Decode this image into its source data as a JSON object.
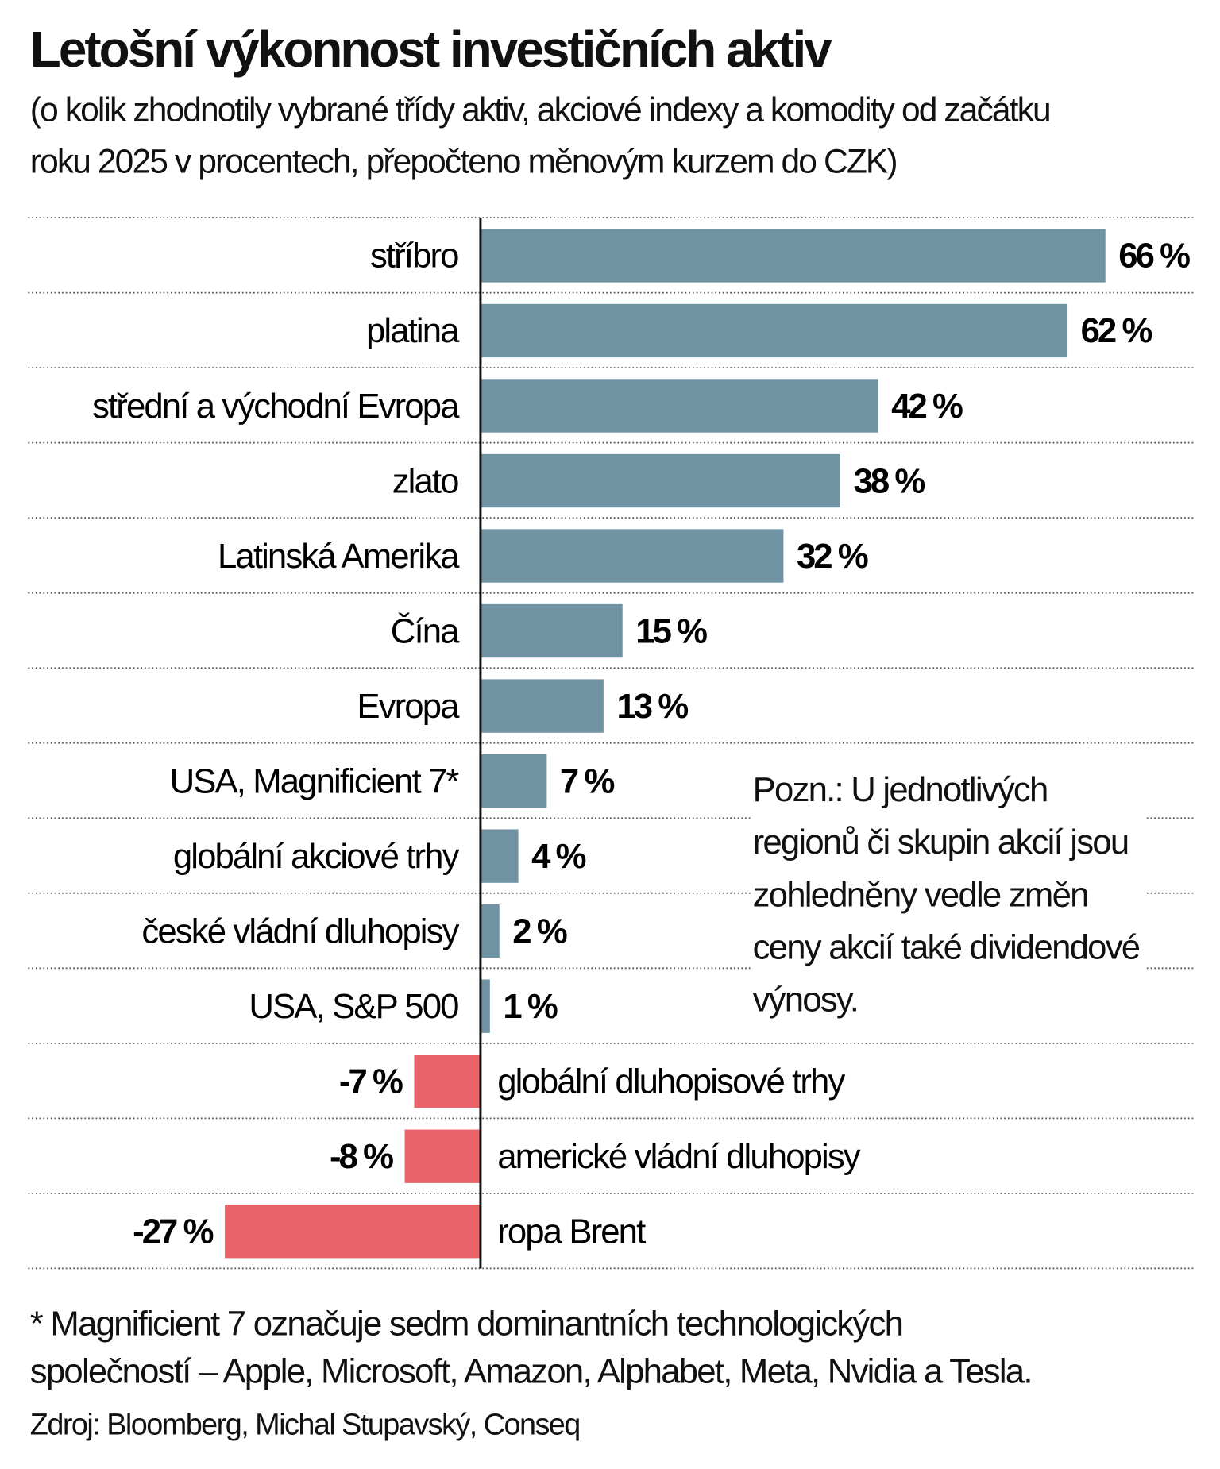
{
  "title": "Letošní výkonnost investičních aktiv",
  "subtitle": [
    "(o kolik zhodnotily vybrané třídy aktiv, akciové indexy a komodity od začátku",
    "roku 2025 v procentech, přepočteno měnovým kurzem do CZK)"
  ],
  "note": "Pozn.: U jednotlivých regionů či skupin akcií jsou zohledněny vedle změn ceny akcií také dividendové výnosy.",
  "footnote": [
    "* Magnificient 7 označuje sedm dominantních technologických",
    "společností – Apple, Microsoft, Amazon, Alphabet, Meta, Nvidia a Tesla."
  ],
  "source": "Zdroj: Bloomberg, Michal Stupavský, Conseq",
  "colors": {
    "positive": "#7093a3",
    "negative": "#e8636a"
  },
  "chart_data": {
    "type": "bar",
    "orientation": "horizontal",
    "unit": "%",
    "categories": [
      "stříbro",
      "platina",
      "střední a východní Evropa",
      "zlato",
      "Latinská Amerika",
      "Čína",
      "Evropa",
      "USA, Magnificient 7*",
      "globální akciové trhy",
      "české vládní dluhopisy",
      "USA, S&P 500",
      "globální dluhopisové trhy",
      "americké vládní dluhopisy",
      "ropa Brent"
    ],
    "values": [
      66,
      62,
      42,
      38,
      32,
      15,
      13,
      7,
      4,
      2,
      1,
      -7,
      -8,
      -27
    ],
    "labels": [
      "66 %",
      "62 %",
      "42 %",
      "38 %",
      "32 %",
      "15 %",
      "13 %",
      "7 %",
      "4 %",
      "2 %",
      "1 %",
      "-7 %",
      "-8 %",
      "-27 %"
    ],
    "grid": "dotted row separators"
  }
}
